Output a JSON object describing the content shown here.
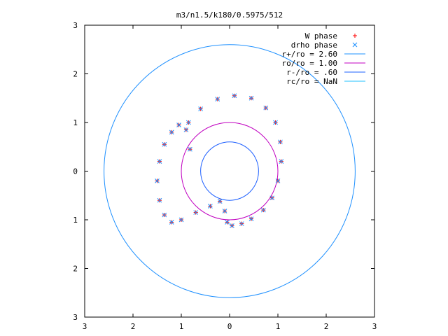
{
  "chart_data": {
    "type": "scatter",
    "title": "m3/n1.5/k180/0.5975/512",
    "xlim": [
      -3,
      3
    ],
    "ylim": [
      -3,
      3
    ],
    "x_ticks": [
      -3,
      -2,
      -1,
      0,
      1,
      2,
      3
    ],
    "y_ticks": [
      -3,
      -2,
      -1,
      0,
      1,
      2,
      3
    ],
    "x_tick_labels": [
      "3",
      "2",
      "1",
      "0",
      "1",
      "2",
      "3"
    ],
    "y_tick_labels": [
      "3",
      "2",
      "1",
      "0",
      "1",
      "2",
      "3"
    ],
    "legend_position": "top-right",
    "legend": [
      {
        "label": "W phase",
        "marker": "+",
        "color": "#ff0000"
      },
      {
        "label": "drho phase",
        "marker": "x",
        "color": "#1e90ff"
      },
      {
        "label": "r+/ro = 2.60",
        "marker": "line",
        "color": "#1e90ff"
      },
      {
        "label": "ro/ro = 1.00",
        "marker": "line",
        "color": "#c000c0"
      },
      {
        "label": "r-/ro = .60",
        "marker": "line",
        "color": "#1e60ff"
      },
      {
        "label": "rc/ro = NaN",
        "marker": "line",
        "color": "#20c0ff"
      }
    ],
    "circles": [
      {
        "r": 2.6,
        "color": "#1e90ff"
      },
      {
        "r": 1.0,
        "color": "#c000c0"
      },
      {
        "r": 0.6,
        "color": "#1e60ff"
      }
    ],
    "series": [
      {
        "name": "W phase",
        "marker": "+",
        "color": "#ff0000",
        "x": [
          -0.85,
          -0.6,
          -0.25,
          0.1,
          0.45,
          0.75,
          0.95,
          1.05,
          1.07,
          1.0,
          0.88,
          0.7,
          0.45,
          0.25,
          0.05,
          -0.05,
          -0.1,
          -0.2,
          -0.4,
          -0.7,
          -1.0,
          -1.2,
          -1.35,
          -1.45,
          -1.5,
          -1.45,
          -1.35,
          -1.2,
          -1.05,
          -0.9,
          -0.82
        ],
        "y": [
          1.0,
          1.28,
          1.48,
          1.55,
          1.5,
          1.3,
          1.0,
          0.6,
          0.2,
          -0.2,
          -0.55,
          -0.8,
          -0.98,
          -1.08,
          -1.12,
          -1.05,
          -0.82,
          -0.62,
          -0.72,
          -0.85,
          -1.0,
          -1.05,
          -0.9,
          -0.6,
          -0.2,
          0.2,
          0.55,
          0.8,
          0.95,
          0.85,
          0.45
        ]
      },
      {
        "name": "drho phase",
        "marker": "x",
        "color": "#1e90ff",
        "x": [
          -0.85,
          -0.6,
          -0.25,
          0.1,
          0.45,
          0.75,
          0.95,
          1.05,
          1.07,
          1.0,
          0.88,
          0.7,
          0.45,
          0.25,
          0.05,
          -0.05,
          -0.1,
          -0.2,
          -0.4,
          -0.7,
          -1.0,
          -1.2,
          -1.35,
          -1.45,
          -1.5,
          -1.45,
          -1.35,
          -1.2,
          -1.05,
          -0.9,
          -0.82
        ],
        "y": [
          1.0,
          1.28,
          1.48,
          1.55,
          1.5,
          1.3,
          1.0,
          0.6,
          0.2,
          -0.2,
          -0.55,
          -0.8,
          -0.98,
          -1.08,
          -1.12,
          -1.05,
          -0.82,
          -0.62,
          -0.72,
          -0.85,
          -1.0,
          -1.05,
          -0.9,
          -0.6,
          -0.2,
          0.2,
          0.55,
          0.8,
          0.95,
          0.85,
          0.45
        ]
      }
    ]
  }
}
